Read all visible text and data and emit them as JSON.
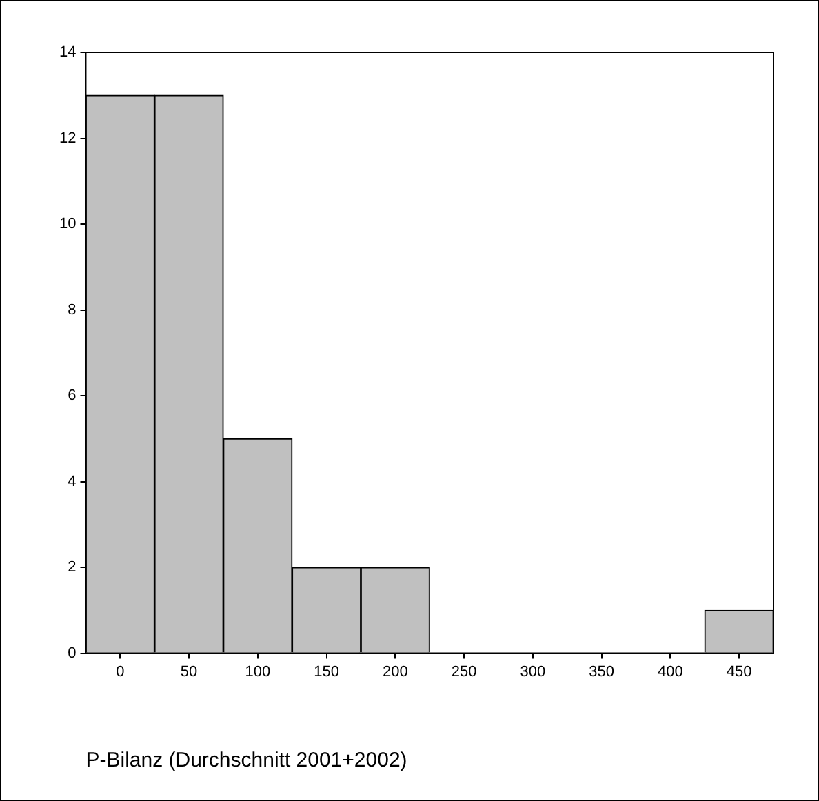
{
  "chart_data": {
    "type": "histogram",
    "xlabel": "P-Bilanz (Durchschnitt 2001+2002)",
    "bins": [
      -25,
      25,
      75,
      125,
      175,
      225,
      275,
      325,
      375,
      425,
      475
    ],
    "values": [
      13,
      13,
      5,
      2,
      2,
      0,
      0,
      0,
      0,
      1
    ],
    "color": "#c0c0c0",
    "xlim": [
      -25,
      475
    ],
    "xticks": [
      0,
      50,
      100,
      150,
      200,
      250,
      300,
      350,
      400,
      450
    ],
    "ylim": [
      0,
      14
    ],
    "yticks": [
      0,
      2,
      4,
      6,
      8,
      10,
      12,
      14
    ]
  }
}
